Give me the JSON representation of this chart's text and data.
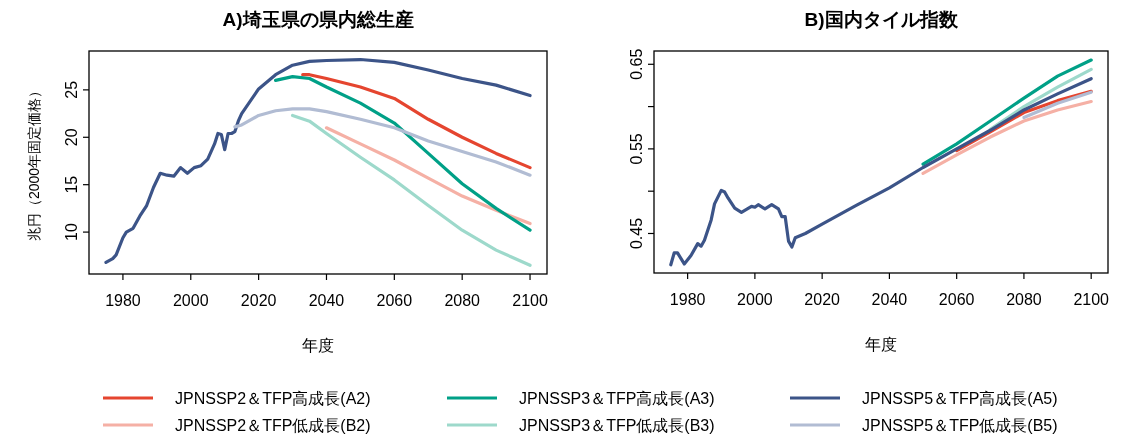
{
  "chart_data": [
    {
      "type": "line",
      "title": "A)埼玉県の県内総生産",
      "xlabel": "年度",
      "ylabel": "兆円（2000年固定価格）",
      "xlim": [
        1970,
        2105
      ],
      "ylim": [
        5.58,
        29.1
      ],
      "xticks": [
        1980,
        2000,
        2020,
        2040,
        2060,
        2080,
        2100
      ],
      "yticks": [
        10,
        15,
        20,
        25
      ],
      "legend": "bottom",
      "grid": false,
      "marker": "none",
      "line_style": "solid",
      "series": [
        {
          "name": "JPNSSP2＆TFP高成長(A2)",
          "color": "#e5452f",
          "x": [
            2033,
            2035,
            2040,
            2050,
            2060,
            2070,
            2080,
            2090,
            2100
          ],
          "values": [
            26.6,
            26.6,
            26.2,
            25.3,
            24.1,
            21.9,
            20.0,
            18.3,
            16.8
          ]
        },
        {
          "name": "JPNSSP2＆TFP低成長(B2)",
          "color": "#f5b0a5",
          "x": [
            2040,
            2050,
            2060,
            2070,
            2080,
            2090,
            2100
          ],
          "values": [
            21.0,
            19.3,
            17.6,
            15.7,
            13.8,
            12.3,
            10.9
          ]
        },
        {
          "name": "JPNSSP3＆TFP高成長(A3)",
          "color": "#00a087",
          "x": [
            2025,
            2030,
            2035,
            2040,
            2050,
            2060,
            2070,
            2080,
            2090,
            2100
          ],
          "values": [
            26.0,
            26.4,
            26.2,
            25.3,
            23.6,
            21.5,
            18.3,
            15.1,
            12.5,
            10.2
          ]
        },
        {
          "name": "JPNSSP3＆TFP低成長(B3)",
          "color": "#9dd9cb",
          "x": [
            2030,
            2035,
            2040,
            2050,
            2060,
            2070,
            2080,
            2090,
            2100
          ],
          "values": [
            22.3,
            21.7,
            20.4,
            17.9,
            15.5,
            12.8,
            10.2,
            8.1,
            6.5
          ]
        },
        {
          "name": "JPNSSP5＆TFP高成長(A5)",
          "color": "#3c5488",
          "x": [
            1975,
            1977,
            1978,
            1980,
            1981,
            1983,
            1985,
            1987,
            1989,
            1991,
            1993,
            1995,
            1997,
            1999,
            2001,
            2003,
            2005,
            2007,
            2008,
            2009,
            2010,
            2011,
            2012,
            2013,
            2014,
            2015,
            2020,
            2025,
            2030,
            2035,
            2040,
            2050,
            2060,
            2070,
            2080,
            2090,
            2100
          ],
          "values": [
            6.8,
            7.2,
            7.6,
            9.4,
            10.0,
            10.4,
            11.7,
            12.8,
            14.7,
            16.2,
            16.0,
            15.9,
            16.8,
            16.2,
            16.8,
            17.0,
            17.7,
            19.3,
            20.4,
            20.3,
            18.7,
            20.4,
            20.4,
            20.6,
            21.7,
            22.5,
            25.1,
            26.6,
            27.6,
            28.0,
            28.1,
            28.2,
            27.9,
            27.1,
            26.2,
            25.5,
            24.4
          ]
        },
        {
          "name": "JPNSSP5＆TFP低成長(B5)",
          "color": "#b1bcd3",
          "x": [
            2013,
            2015,
            2020,
            2025,
            2030,
            2035,
            2040,
            2050,
            2060,
            2070,
            2080,
            2090,
            2100
          ],
          "values": [
            21.1,
            21.3,
            22.3,
            22.8,
            23.0,
            23.0,
            22.7,
            21.9,
            21.0,
            19.6,
            18.5,
            17.4,
            16.0
          ]
        }
      ]
    },
    {
      "type": "line",
      "title": "B)国内タイル指数",
      "xlabel": "年度",
      "xlim": [
        1970,
        2105
      ],
      "ylim": [
        0.4033,
        0.6657
      ],
      "xticks": [
        1980,
        2000,
        2020,
        2040,
        2060,
        2080,
        2100
      ],
      "yticks": [
        0.45,
        {
          "value": 0.5,
          "label": null
        },
        0.55,
        {
          "value": 0.6,
          "label": null
        },
        0.65
      ],
      "grid": false,
      "marker": "none",
      "line_style": "solid",
      "series": [
        {
          "color": "#e5452f",
          "x": [
            2060,
            2070,
            2080,
            2090,
            2100
          ],
          "values": [
            0.548,
            0.57,
            0.593,
            0.607,
            0.618
          ]
        },
        {
          "color": "#f5b0a5",
          "x": [
            2050,
            2060,
            2070,
            2080,
            2090,
            2100
          ],
          "values": [
            0.521,
            0.543,
            0.564,
            0.583,
            0.596,
            0.606
          ]
        },
        {
          "color": "#00a087",
          "x": [
            2050,
            2060,
            2070,
            2080,
            2090,
            2100
          ],
          "values": [
            0.532,
            0.556,
            0.583,
            0.61,
            0.636,
            0.655
          ]
        },
        {
          "color": "#9dd9cb",
          "x": [
            2070,
            2080,
            2090,
            2100
          ],
          "values": [
            0.573,
            0.6,
            0.623,
            0.644
          ]
        },
        {
          "color": "#3c5488",
          "x": [
            1975,
            1976,
            1977,
            1979,
            1981,
            1983,
            1984,
            1985,
            1987,
            1988,
            1990,
            1991,
            1992,
            1994,
            1996,
            1999,
            2000,
            2001,
            2003,
            2005,
            2007,
            2008,
            2009,
            2010,
            2011,
            2012,
            2015,
            2020,
            2030,
            2040,
            2050,
            2060,
            2070,
            2080,
            2090,
            2100
          ],
          "values": [
            0.413,
            0.427,
            0.427,
            0.414,
            0.424,
            0.438,
            0.435,
            0.442,
            0.466,
            0.485,
            0.501,
            0.499,
            0.492,
            0.48,
            0.475,
            0.482,
            0.481,
            0.484,
            0.479,
            0.484,
            0.479,
            0.47,
            0.47,
            0.441,
            0.434,
            0.445,
            0.45,
            0.461,
            0.483,
            0.504,
            0.528,
            0.55,
            0.572,
            0.596,
            0.615,
            0.633
          ]
        },
        {
          "color": "#b1bcd3",
          "x": [
            2080,
            2090,
            2100
          ],
          "values": [
            0.587,
            0.604,
            0.617
          ]
        }
      ]
    }
  ]
}
